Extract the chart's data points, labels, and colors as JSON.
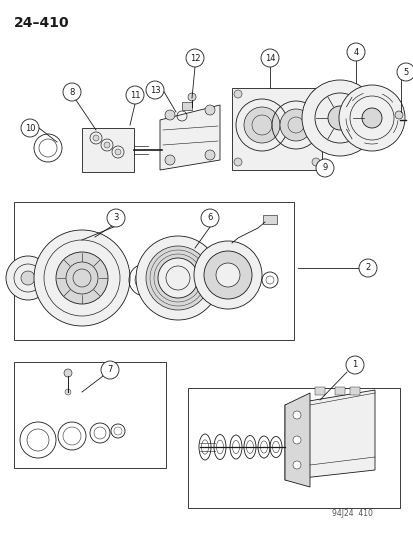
{
  "title": "24–410",
  "footer": "94J24  410",
  "bg_color": "#ffffff",
  "line_color": "#1a1a1a",
  "gray_fill": "#d8d8d8",
  "light_fill": "#f0f0f0",
  "mid_fill": "#c8c8c8"
}
